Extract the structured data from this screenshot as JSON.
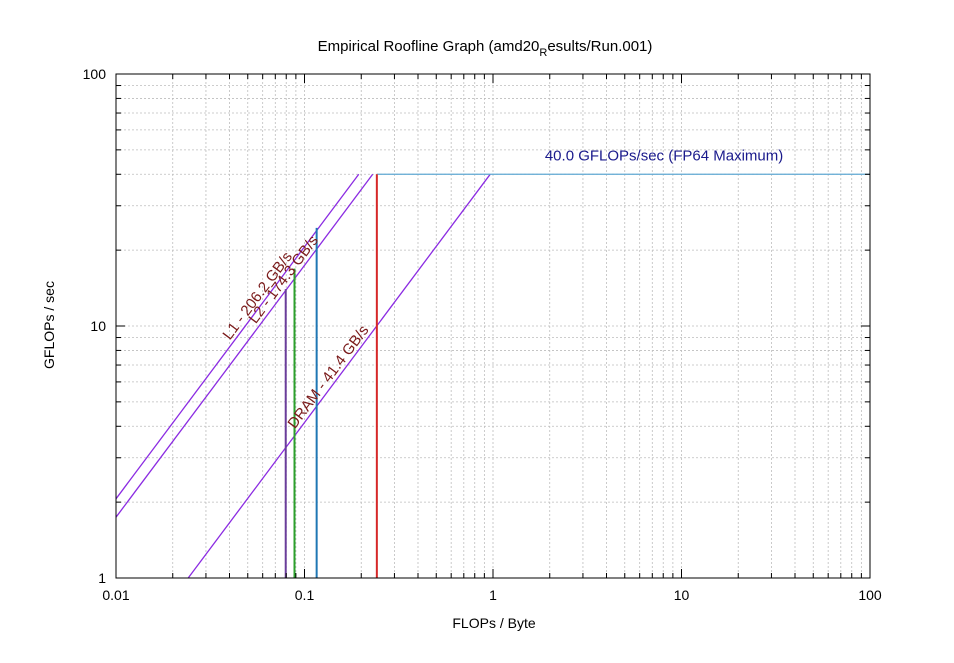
{
  "chart_data": {
    "type": "line",
    "title": "Empirical Roofline Graph (amd20",
    "title_subscript": "R",
    "title_suffix": "esults/Run.001)",
    "xlabel": "FLOPs / Byte",
    "ylabel": "GFLOPs / sec",
    "x_scale": "log",
    "y_scale": "log",
    "xlim": [
      0.01,
      100
    ],
    "ylim": [
      1,
      100
    ],
    "x_ticks": [
      {
        "value": 0.01,
        "label": "0.01"
      },
      {
        "value": 0.1,
        "label": "0.1"
      },
      {
        "value": 1,
        "label": "1"
      },
      {
        "value": 10,
        "label": "10"
      },
      {
        "value": 100,
        "label": "100"
      }
    ],
    "y_ticks": [
      {
        "value": 1,
        "label": "1"
      },
      {
        "value": 10,
        "label": "10"
      },
      {
        "value": 100,
        "label": "100"
      }
    ],
    "grid": true,
    "compute_roof": {
      "label": "40.0 GFLOPs/sec (FP64 Maximum)",
      "gflops": 40.0,
      "x_start": 0.242,
      "color": "#5fa8d3",
      "label_color": "#1a1a8c"
    },
    "bandwidth_roofs": [
      {
        "label": "L1 - 206.2 GB/s",
        "bandwidth": 206.2,
        "x_end": 0.194,
        "color": "#8b2be2"
      },
      {
        "label": "L2 - 174.3 GB/s",
        "bandwidth": 174.3,
        "x_end": 0.23,
        "color": "#8b2be2"
      },
      {
        "label": "DRAM - 41.4 GB/s",
        "bandwidth": 41.4,
        "x_end": 0.966,
        "color": "#8b2be2"
      }
    ],
    "roof_label_color": "#7a1a1a",
    "vertical_markers": [
      {
        "x": 0.0795,
        "y_top": 14.0,
        "color": "#6a3d9a"
      },
      {
        "x": 0.0885,
        "y_top": 16.9,
        "color": "#2ca02c"
      },
      {
        "x": 0.116,
        "y_top": 24.5,
        "color": "#1f77b4"
      },
      {
        "x": 0.242,
        "y_top": 40.0,
        "color": "#d62728"
      }
    ]
  }
}
